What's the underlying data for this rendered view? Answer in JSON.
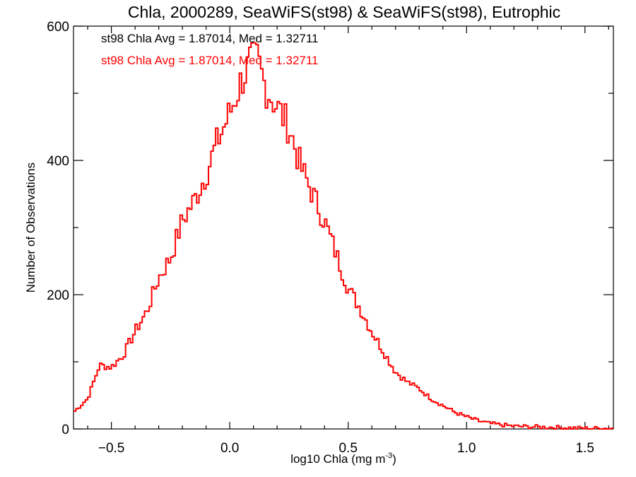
{
  "chart_data": {
    "type": "histogram-step",
    "title": "Chla, 2000289, SeaWiFS(st98) & SeaWiFS(st98), Eutrophic",
    "xlabel": "log10 Chla (mg m",
    "xlabel_sup": "-3",
    "xlabel_suffix": ")",
    "ylabel": "Number of Observations",
    "xlim": [
      -0.66,
      1.62
    ],
    "ylim": [
      0,
      600
    ],
    "x_ticks": [
      -0.5,
      0.0,
      0.5,
      1.0,
      1.5
    ],
    "x_tick_labels": [
      "−0.5",
      "0.0",
      "0.5",
      "1.0",
      "1.5"
    ],
    "y_ticks": [
      0,
      200,
      400,
      600
    ],
    "y_tick_labels": [
      "0",
      "200",
      "400",
      "600"
    ],
    "annotations": [
      {
        "text": "st98 Chla Avg = 1.87014, Med = 1.32711",
        "color": "#000000"
      },
      {
        "text": "st98 Chla Avg = 1.87014, Med = 1.32711",
        "color": "#ff0000"
      }
    ],
    "series": [
      {
        "color": "#ff0000",
        "x": [
          -0.66,
          -0.6,
          -0.55,
          -0.5,
          -0.45,
          -0.4,
          -0.35,
          -0.3,
          -0.25,
          -0.2,
          -0.15,
          -0.1,
          -0.05,
          0.0,
          0.05,
          0.08,
          0.1,
          0.12,
          0.15,
          0.2,
          0.25,
          0.3,
          0.35,
          0.4,
          0.45,
          0.5,
          0.55,
          0.6,
          0.65,
          0.7,
          0.75,
          0.8,
          0.85,
          0.9,
          0.95,
          1.0,
          1.05,
          1.1,
          1.15,
          1.2,
          1.3,
          1.4,
          1.5,
          1.62
        ],
        "y": [
          25,
          45,
          95,
          92,
          110,
          145,
          175,
          225,
          255,
          310,
          340,
          380,
          430,
          470,
          520,
          540,
          560,
          545,
          510,
          480,
          450,
          390,
          350,
          310,
          260,
          210,
          180,
          145,
          115,
          85,
          70,
          60,
          45,
          35,
          25,
          18,
          12,
          8,
          6,
          4,
          3,
          2,
          1,
          1
        ]
      }
    ]
  }
}
